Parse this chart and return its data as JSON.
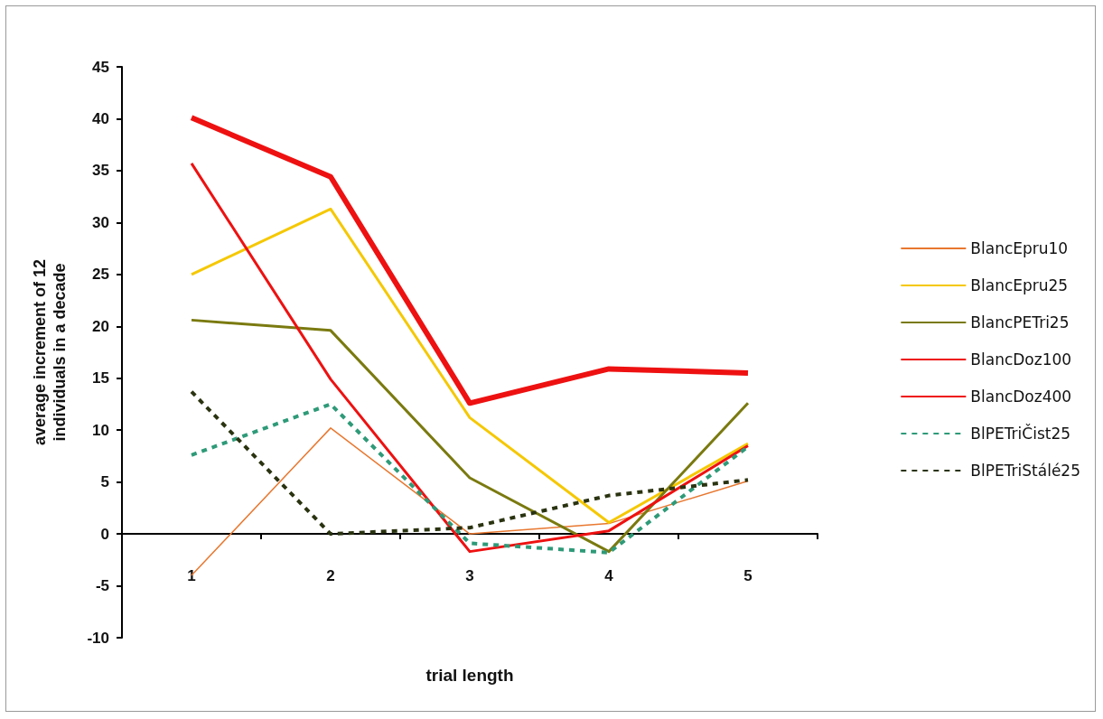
{
  "chart_data": {
    "type": "line",
    "xlabel": "trial length",
    "ylabel": "average increment of 12 individuals in a decade",
    "categories": [
      "1",
      "2",
      "3",
      "4",
      "5"
    ],
    "series": [
      {
        "name": "BlancEpru10",
        "color": "#e87830",
        "line_style": "solid",
        "values": [
          -4.0,
          10.2,
          0,
          1.0,
          5.1
        ]
      },
      {
        "name": "BlancEpru25",
        "color": "#f5c800",
        "line_style": "solid",
        "values": [
          25.0,
          31.3,
          11.2,
          1.1,
          8.7
        ]
      },
      {
        "name": "BlancPETri25",
        "color": "#7a7a10",
        "line_style": "solid",
        "values": [
          20.6,
          19.6,
          5.4,
          -1.7,
          12.6
        ]
      },
      {
        "name": "BlancDoz100",
        "color": "#ee1111",
        "line_style": "solid",
        "values": [
          35.7,
          14.9,
          -1.7,
          0.3,
          8.5
        ]
      },
      {
        "name": "BlancDoz400",
        "color": "#ee1111",
        "line_style": "solid",
        "values": [
          40.1,
          34.4,
          12.6,
          15.9,
          15.5
        ]
      },
      {
        "name": "BlPETriČist25",
        "color": "#2e9a78",
        "line_style": "dashed",
        "values": [
          7.6,
          12.5,
          -0.9,
          -1.8,
          8.4
        ]
      },
      {
        "name": "BlPETriStálé25",
        "color": "#2a3310",
        "line_style": "dashed",
        "values": [
          13.7,
          0,
          0.6,
          3.7,
          5.2
        ]
      }
    ],
    "ylim": [
      -10,
      45
    ],
    "yticks": [
      -10,
      -5,
      0,
      5,
      10,
      15,
      20,
      25,
      30,
      35,
      40,
      45
    ],
    "legend": "right",
    "marker": "none"
  }
}
